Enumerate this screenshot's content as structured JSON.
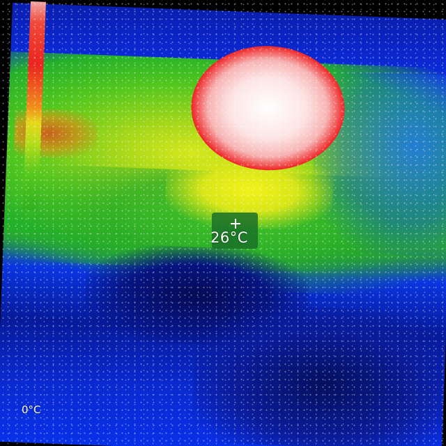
{
  "thermal_view": {
    "center_temperature": "26°C",
    "scale_min_label": "0°C"
  },
  "icons": {
    "crosshair": "crosshair-icon"
  },
  "colors": {
    "hot": "#ffffff",
    "warm": "#ea2420",
    "mid": "#e6d81a",
    "cool": "#30b020",
    "cold": "#0a2ad0",
    "overlay_box": "#1a7028"
  }
}
